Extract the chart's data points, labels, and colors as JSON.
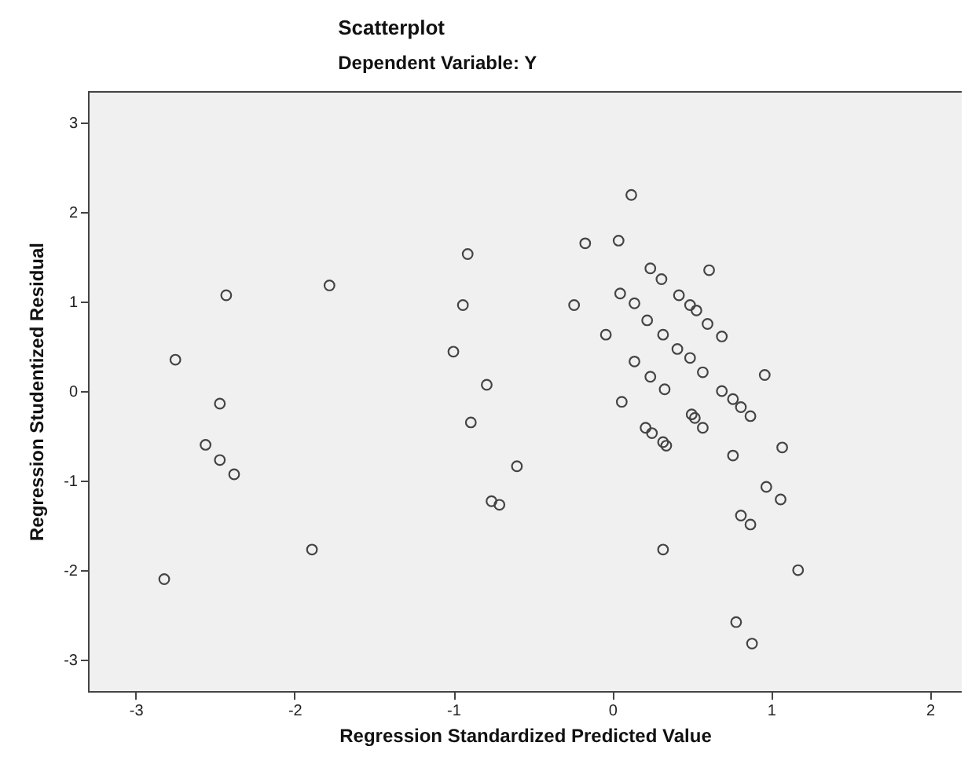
{
  "chart_data": {
    "type": "scatter",
    "title": "Scatterplot",
    "subtitle": "Dependent Variable: Y",
    "xlabel": "Regression Standardized Predicted Value",
    "ylabel": "Regression Studentized Residual",
    "xlim": [
      -3.3,
      2.2
    ],
    "ylim": [
      -3.35,
      3.35
    ],
    "xticks": [
      -3,
      -2,
      -1,
      0,
      1,
      2
    ],
    "yticks": [
      -3,
      -2,
      -1,
      0,
      1,
      2,
      3
    ],
    "grid": false,
    "marker": "circle",
    "series": [
      {
        "color": "#444444",
        "x": [
          -2.75,
          -2.43,
          -1.78,
          -0.91,
          -0.94,
          -1.0,
          -0.79,
          -2.47,
          -2.56,
          -2.47,
          -2.38,
          -1.89,
          -2.82,
          -0.89,
          -0.76,
          -0.71,
          -0.6,
          0.06,
          0.21,
          0.25,
          0.32,
          0.34,
          0.5,
          0.52,
          0.57,
          0.76,
          1.07,
          0.97,
          1.06,
          0.81,
          0.87,
          0.32,
          1.17,
          0.78,
          0.88,
          0.12,
          -0.17,
          0.04,
          0.24,
          0.31,
          0.61,
          0.05,
          0.14,
          0.42,
          0.49,
          0.53,
          0.6,
          0.69,
          -0.24,
          -0.04,
          0.22,
          0.32,
          0.41,
          0.49,
          0.14,
          0.57,
          0.96,
          0.24,
          0.33,
          0.69,
          0.76,
          0.81,
          0.87
        ],
        "values": [
          0.35,
          1.07,
          1.18,
          1.53,
          0.96,
          0.44,
          0.07,
          -0.14,
          -0.6,
          -0.77,
          -0.93,
          -1.77,
          -2.1,
          -0.35,
          -1.23,
          -1.27,
          -0.84,
          -0.12,
          -0.41,
          -0.47,
          -0.57,
          -0.61,
          -0.26,
          -0.3,
          -0.41,
          -0.72,
          -0.63,
          -1.07,
          -1.21,
          -1.39,
          -1.49,
          -1.77,
          -2.0,
          -2.58,
          -2.82,
          2.19,
          1.65,
          1.68,
          1.37,
          1.25,
          1.35,
          1.09,
          0.98,
          1.07,
          0.96,
          0.9,
          0.75,
          0.61,
          0.96,
          0.63,
          0.79,
          0.63,
          0.47,
          0.37,
          0.33,
          0.21,
          0.18,
          0.16,
          0.02,
          0.0,
          -0.09,
          -0.18,
          -0.28
        ]
      }
    ]
  }
}
